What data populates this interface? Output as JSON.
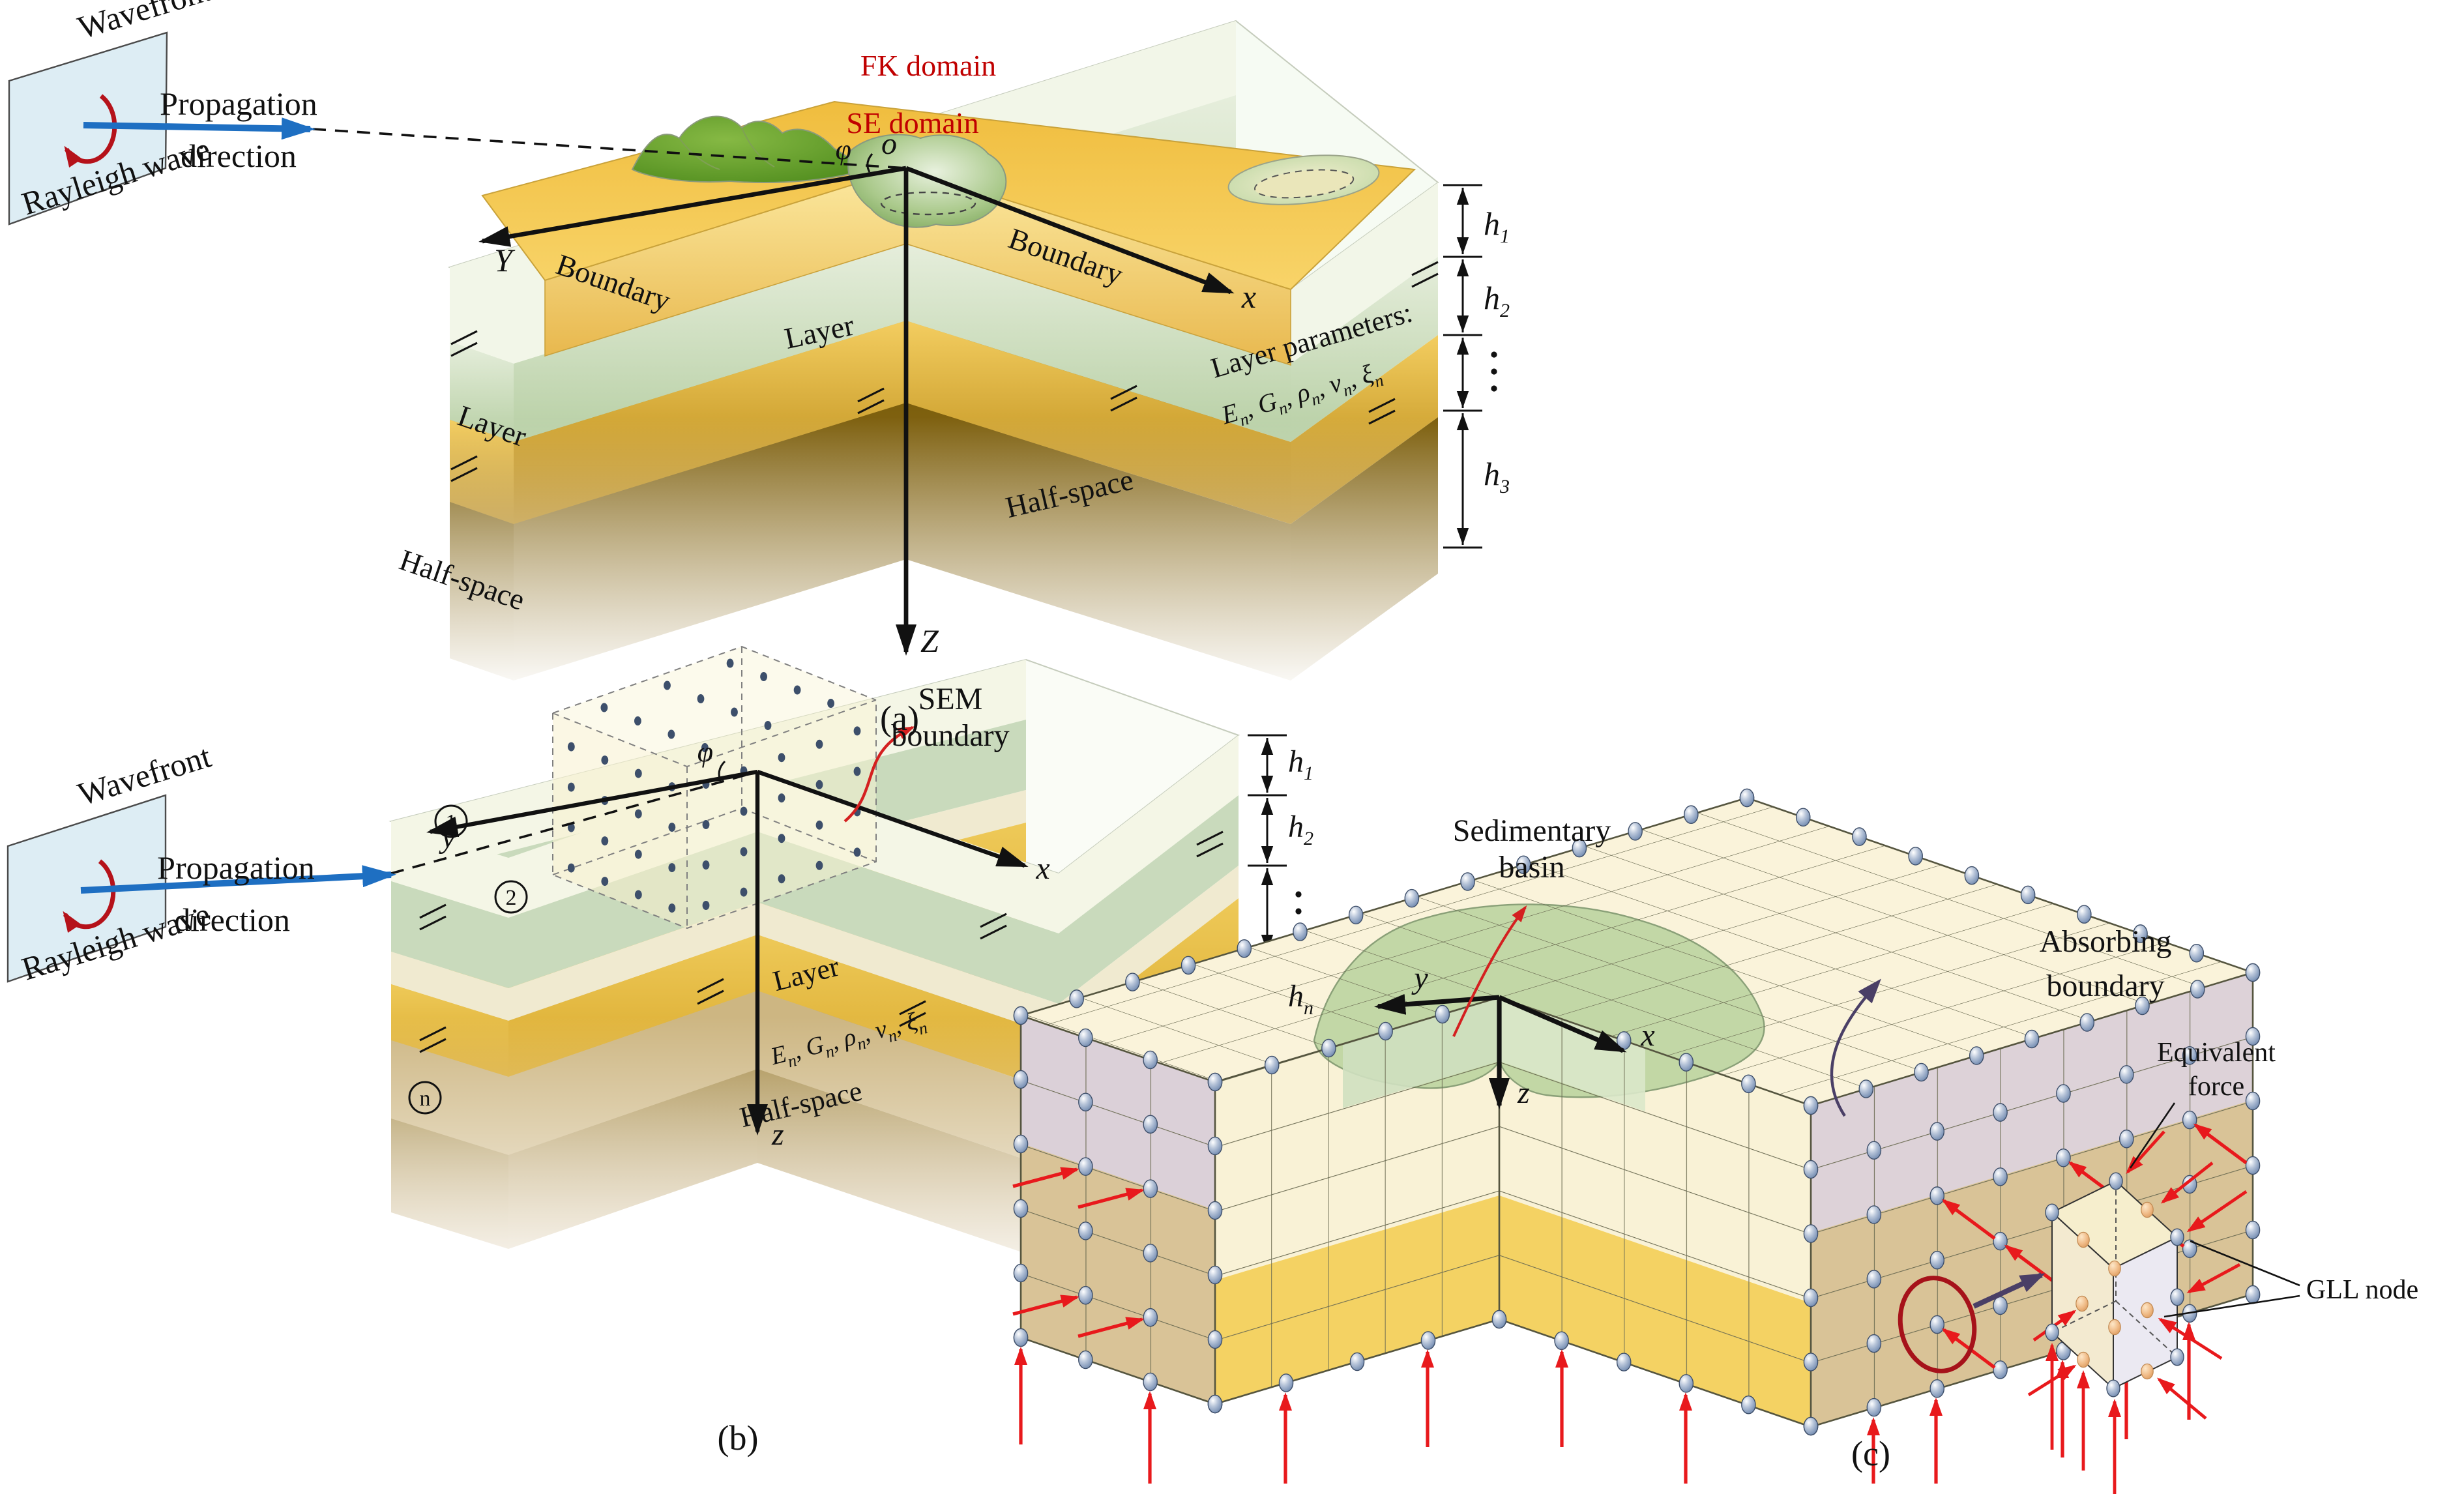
{
  "colors": {
    "domain_label_red": "#c00000",
    "propagation_blue": "#1e6fc2",
    "rayleigh_ellipse_red": "#b5121a",
    "force_arrow_red": "#e8191c",
    "absorbing_arrow_purple": "#4a3f66",
    "node_sphere_blue": "#7890b4",
    "gll_dot_navy": "#3d4f6b",
    "se_domain_yellow": "#f5c75a",
    "basin_green": "#9dc07e",
    "layer_gold": "#d8a62a",
    "halfspace_brown": "#7c5e0c",
    "wavefront_plane_blue": "#ddedf4"
  },
  "panel_a": {
    "caption": "(a)",
    "wavefront": "Wavefront",
    "rayleigh": "Rayleigh wave",
    "prop1": "Propagation",
    "prop2": "direction",
    "fk": "FK domain",
    "se": "SE domain",
    "origin": "o",
    "phi": "φ",
    "axis_x": "x",
    "axis_y": "Y",
    "axis_z": "Z",
    "boundary_left": "Boundary",
    "boundary_right": "Boundary",
    "layer_left": "Layer",
    "layer_mid": "Layer",
    "half_left": "Half-space",
    "half_right": "Half-space",
    "params_title": "Layer parameters:",
    "params_sep": ", ",
    "params": [
      {
        "b": "E",
        "s": "n"
      },
      {
        "b": "G",
        "s": "n"
      },
      {
        "b": "ρ",
        "s": "n"
      },
      {
        "b": "v",
        "s": "n"
      },
      {
        "b": "ξ",
        "s": "n"
      }
    ],
    "dims": [
      {
        "b": "h",
        "s": "1"
      },
      {
        "b": "h",
        "s": "2"
      },
      {
        "b": "h",
        "s": "3"
      }
    ]
  },
  "panel_b": {
    "caption": "(b)",
    "wavefront": "Wavefront",
    "rayleigh": "Rayleigh wave",
    "prop1": "Propagation",
    "prop2": "direction",
    "sem1": "SEM",
    "sem2": "boundary",
    "phi": "φ",
    "axis_x": "x",
    "axis_y": "y",
    "axis_z": "z",
    "layer_nums": [
      "1",
      "2",
      "n"
    ],
    "layer": "Layer",
    "half": "Half-space",
    "params_sep": ", ",
    "params": [
      {
        "b": "E",
        "s": "n"
      },
      {
        "b": "G",
        "s": "n"
      },
      {
        "b": "ρ",
        "s": "n"
      },
      {
        "b": "v",
        "s": "n"
      },
      {
        "b": "ξ",
        "s": "n"
      }
    ],
    "dims": [
      {
        "b": "h",
        "s": "1"
      },
      {
        "b": "h",
        "s": "2"
      },
      {
        "b": "h",
        "s": "n"
      }
    ]
  },
  "panel_c": {
    "caption": "(c)",
    "sed1": "Sedimentary",
    "sed2": "basin",
    "abs1": "Absorbing",
    "abs2": "boundary",
    "eq1": "Equivalent",
    "eq2": "force",
    "gll": "GLL node",
    "axis_x": "x",
    "axis_y": "y",
    "axis_z": "z"
  }
}
